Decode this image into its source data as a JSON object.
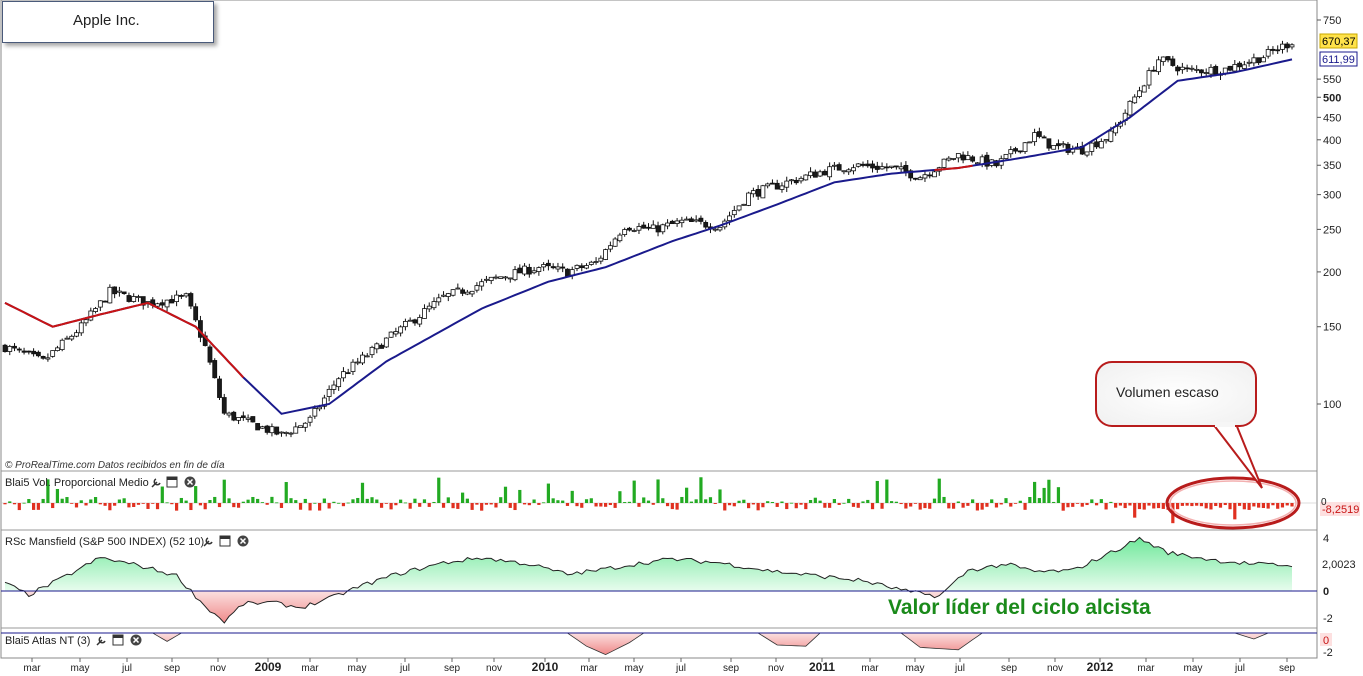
{
  "chart_data": {
    "type": "candlestick",
    "title": "Apple Inc.",
    "source_note": "© ProRealTime.com  Datos recibidos en fin de día",
    "price_axis": {
      "scale": "log",
      "ticks": [
        100,
        150,
        200,
        250,
        300,
        350,
        400,
        450,
        500,
        550,
        611.99,
        670.37,
        750
      ],
      "range": [
        80,
        780
      ]
    },
    "last_price": "670,37",
    "moving_average_label": "611,99",
    "x_labels": [
      "mar",
      "may",
      "jul",
      "sep",
      "nov",
      "2009",
      "mar",
      "may",
      "jul",
      "sep",
      "nov",
      "2010",
      "mar",
      "may",
      "jul",
      "sep",
      "nov",
      "2011",
      "mar",
      "may",
      "jul",
      "sep",
      "nov",
      "2012",
      "mar",
      "may",
      "jul",
      "sep"
    ],
    "price_keypoints": [
      [
        0,
        135
      ],
      [
        8,
        125
      ],
      [
        16,
        150
      ],
      [
        22,
        180
      ],
      [
        30,
        170
      ],
      [
        38,
        175
      ],
      [
        42,
        135
      ],
      [
        46,
        95
      ],
      [
        52,
        90
      ],
      [
        58,
        85
      ],
      [
        64,
        92
      ],
      [
        70,
        115
      ],
      [
        80,
        140
      ],
      [
        92,
        175
      ],
      [
        104,
        195
      ],
      [
        112,
        205
      ],
      [
        118,
        200
      ],
      [
        124,
        210
      ],
      [
        130,
        255
      ],
      [
        136,
        250
      ],
      [
        142,
        260
      ],
      [
        150,
        255
      ],
      [
        156,
        300
      ],
      [
        164,
        320
      ],
      [
        172,
        340
      ],
      [
        178,
        350
      ],
      [
        186,
        345
      ],
      [
        192,
        330
      ],
      [
        200,
        370
      ],
      [
        208,
        350
      ],
      [
        216,
        410
      ],
      [
        220,
        385
      ],
      [
        226,
        380
      ],
      [
        232,
        410
      ],
      [
        238,
        520
      ],
      [
        242,
        610
      ],
      [
        248,
        575
      ],
      [
        256,
        580
      ],
      [
        264,
        620
      ],
      [
        270,
        670
      ]
    ],
    "ma_keypoints": [
      [
        0,
        170
      ],
      [
        10,
        150
      ],
      [
        20,
        160
      ],
      [
        30,
        170
      ],
      [
        40,
        150
      ],
      [
        50,
        115
      ],
      [
        58,
        95
      ],
      [
        68,
        100
      ],
      [
        80,
        125
      ],
      [
        100,
        165
      ],
      [
        114,
        190
      ],
      [
        126,
        205
      ],
      [
        140,
        235
      ],
      [
        150,
        255
      ],
      [
        162,
        285
      ],
      [
        174,
        320
      ],
      [
        186,
        335
      ],
      [
        200,
        345
      ],
      [
        214,
        365
      ],
      [
        226,
        385
      ],
      [
        236,
        450
      ],
      [
        246,
        545
      ],
      [
        258,
        570
      ],
      [
        270,
        610
      ]
    ],
    "ma_red_segments": [
      [
        0,
        50
      ],
      [
        195,
        203
      ]
    ],
    "panels": [
      {
        "name": "Blai5 Vol. Proporcional Medio",
        "value_label": "-8,2519",
        "axis_label": "0"
      },
      {
        "name": "RSc Mansfield (S&P 500 INDEX) (52 10)",
        "value_label": "2,0023",
        "ticks": [
          "4",
          "2",
          "0",
          "-2"
        ]
      },
      {
        "name": "Blai5 Atlas NT (3)",
        "value_label": "0",
        "ticks": [
          "0",
          "-2"
        ]
      }
    ],
    "annotations": {
      "callout": "Volumen escaso",
      "highlight": "Valor líder del ciclo alcista"
    },
    "colors": {
      "up": "#ffffff",
      "down": "#1a1a1a",
      "ma_blue": "#1a1a8c",
      "ma_red": "#c81414",
      "vol_up": "#22aa22",
      "vol_down": "#e03020",
      "area_pos": "#90f0b0",
      "area_neg": "#f4a0a0",
      "highlight_text": "#1a8a1a"
    }
  }
}
